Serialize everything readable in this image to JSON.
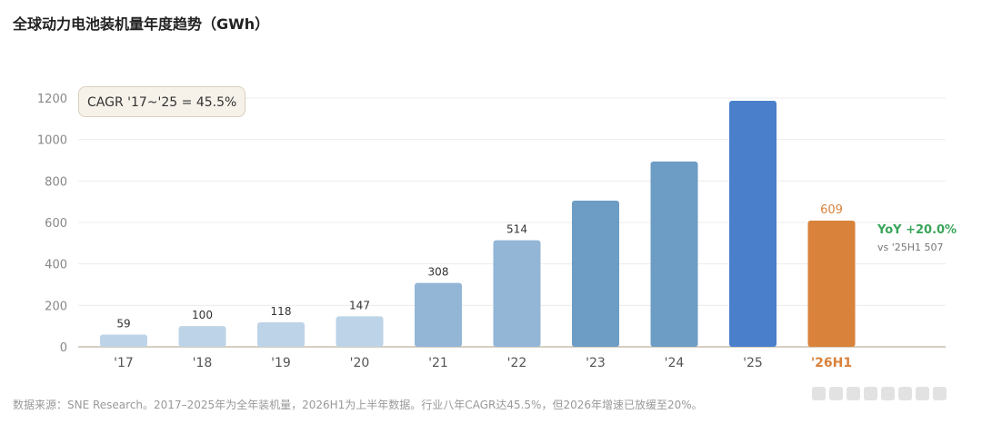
{
  "title": "全球动力电池装机量年度趋势（GWh）",
  "cagr_label": "CAGR '17~'25 = 45.5%",
  "yoy": {
    "label": "YoY +20.0%",
    "sub": "vs '25H1 507"
  },
  "footnote": "数据来源：SNE Research。2017–2025年为全年装机量，2026H1为上半年数据。行业八年CAGR达45.5%，但2026年增速已放缓至20%。",
  "colors": {
    "highlight": "#d9823b",
    "yoy_green": "#3aa55a"
  },
  "chart_data": {
    "type": "bar",
    "categories": [
      "'17",
      "'18",
      "'19",
      "'20",
      "'21",
      "'22",
      "'23",
      "'24",
      "'25",
      "'26H1"
    ],
    "values": [
      59,
      100,
      118,
      147,
      308,
      514,
      705,
      894,
      1187,
      609
    ],
    "data_labels": [
      "59",
      "100",
      "118",
      "147",
      "308",
      "514",
      "",
      "",
      "",
      "609"
    ],
    "bar_colors": [
      "#bdd3e8",
      "#bdd3e8",
      "#bdd3e8",
      "#bdd3e8",
      "#94b6d6",
      "#94b6d6",
      "#6d9cc4",
      "#6d9cc4",
      "#4a80cb",
      "#d9823b"
    ],
    "highlight_index": 9,
    "yticks": [
      0,
      200,
      400,
      600,
      800,
      1000,
      1200
    ],
    "ylim": [
      0,
      1200
    ],
    "grid": true,
    "title": "全球动力电池装机量年度趋势（GWh）",
    "xlabel": "",
    "ylabel": ""
  }
}
